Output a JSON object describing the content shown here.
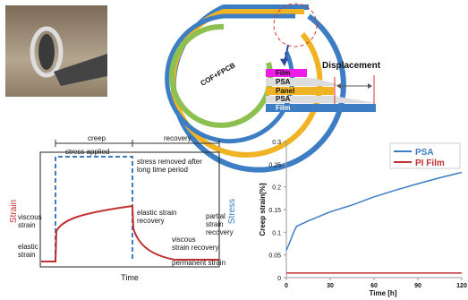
{
  "diagram": {
    "cof_label": "COF+FPCB",
    "layers": [
      "Film",
      "PSA",
      "Panel",
      "PSA",
      "Film"
    ],
    "displacement": "Displacement",
    "creep": "creep",
    "recovery": "recovery",
    "strain_axis": "Strain",
    "stress_axis": "Stress",
    "time_axis": "Time",
    "stress_applied": "stress applied",
    "stress_removed": [
      "stress removed after",
      "long time period"
    ],
    "viscous_strain": [
      "viscous",
      "strain"
    ],
    "elastic_strain": [
      "elastic",
      "strain"
    ],
    "elastic_recovery": [
      "elastic strain",
      "recovery"
    ],
    "viscous_recovery": [
      "viscous",
      "strain recovery"
    ],
    "partial_recovery": [
      "partial",
      "strain",
      "recovery"
    ],
    "permanent_strain": "permanent strain"
  },
  "chart_data": {
    "type": "line",
    "xlabel": "Time [h]",
    "ylabel": "Creep strain[%]",
    "xlim": [
      0,
      120
    ],
    "xticks": [
      0,
      30,
      60,
      90,
      120
    ],
    "ylim": [
      0,
      0.3
    ],
    "yticks": [
      0,
      0.05,
      0.1,
      0.15,
      0.2,
      0.25,
      0.3
    ],
    "legend": "upper right",
    "x": [
      0,
      2,
      5,
      7,
      15,
      30,
      45,
      60,
      75,
      90,
      105,
      120
    ],
    "series": [
      {
        "name": "PSA",
        "color": "#3c7dc4",
        "values": [
          0.06,
          0.075,
          0.1,
          0.113,
          0.125,
          0.145,
          0.16,
          0.178,
          0.193,
          0.207,
          0.22,
          0.232
        ]
      },
      {
        "name": "PI Film",
        "color": "#c0302f",
        "values": [
          0.01,
          0.01,
          0.01,
          0.01,
          0.01,
          0.01,
          0.01,
          0.01,
          0.01,
          0.01,
          0.01,
          0.01
        ]
      }
    ]
  }
}
